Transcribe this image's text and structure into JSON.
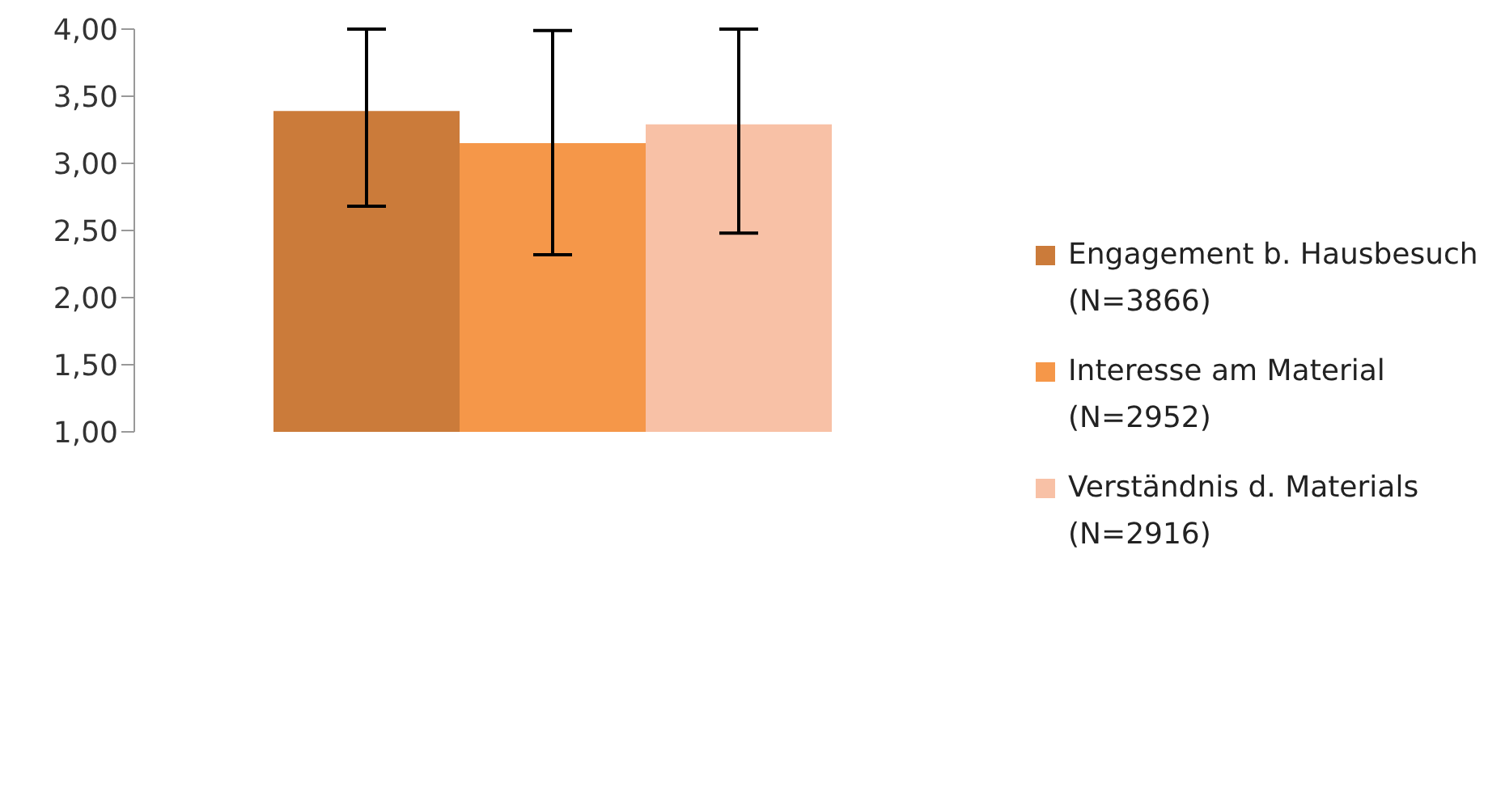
{
  "chart_data": {
    "type": "bar",
    "categories": [
      null
    ],
    "series": [
      {
        "name": "Engagement b. Hausbesuch (N=3866)",
        "color": "#cb7b3a",
        "values": [
          3.39
        ],
        "errors": [
          [
            2.68,
            4.0
          ]
        ]
      },
      {
        "name": "Interesse am Material (N=2952)",
        "color": "#f59749",
        "values": [
          3.15
        ],
        "errors": [
          [
            2.32,
            3.99
          ]
        ]
      },
      {
        "name": "Verständnis d. Materials (N=2916)",
        "color": "#f8c1a6",
        "values": [
          3.29
        ],
        "errors": [
          [
            2.48,
            4.0
          ]
        ]
      }
    ],
    "ylim": [
      1,
      4
    ],
    "yticks": [
      {
        "value": 1,
        "label": "1,00"
      },
      {
        "value": 1.5,
        "label": "1,50"
      },
      {
        "value": 2,
        "label": "2,00"
      },
      {
        "value": 2.5,
        "label": "2,50"
      },
      {
        "value": 3,
        "label": "3,00"
      },
      {
        "value": 3.5,
        "label": "3,50"
      },
      {
        "value": 4,
        "label": "4,00"
      }
    ],
    "grid": false,
    "legend": "right"
  }
}
